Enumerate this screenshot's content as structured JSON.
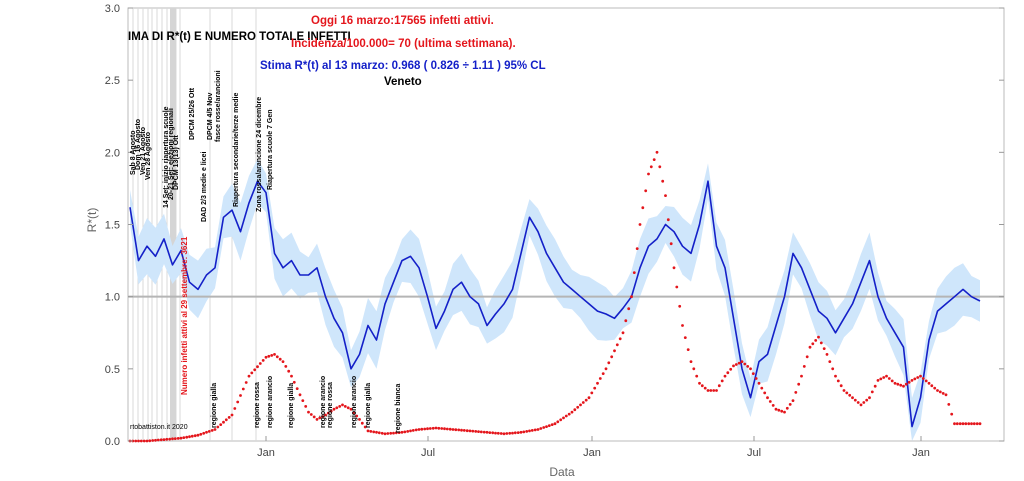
{
  "chart_data": {
    "type": "line",
    "title_partial": "IMA DI R*(t) E NUMERO TOTALE INFETTI",
    "annotations": {
      "oggi": "Oggi 16 marzo:17565 infetti attivi.",
      "incidenza": "Incidenza/100.000= 70 (ultima settimana).",
      "stima": "Stima R*(t) al 13 marzo: 0.968 ( 0.826 ÷ 1.11 ) 95% CL",
      "region": "Veneto",
      "side_label": "Numero infetti attivi al 29 settembre: 3621",
      "credit": "rtobattiston.it 2020"
    },
    "xlabel": "Data",
    "ylabel": "R*(t)",
    "ylim": [
      0,
      3
    ],
    "y_ticks": [
      "0.0",
      "0.5",
      "1.0",
      "1.5",
      "2.0",
      "2.5",
      "3.0"
    ],
    "reference_line": 1.0,
    "x_ticks": [
      "Jan",
      "Jul",
      "Jan",
      "Jul",
      "Jan"
    ],
    "event_labels_top": [
      "Sab 8 Agosto",
      "Dom 16 Agosto",
      "Ven 21 Agosto",
      "Ven 28 Agosto",
      "14 Set: inizio riapertura scuole",
      "20-21 Set: elezioni regionali",
      "DPCM 13(13) Ott",
      "DPCM 25/26 Ott",
      "DAD 2/3 medie e licei",
      "DPCM 4/5 Nov",
      "fasce rosse/arancioni",
      "Riapertura secondarie/terze medie",
      "Zona rossa/arancione 24 dicembre",
      "Riapertura scuole 7 Gen"
    ],
    "event_labels_bottom": [
      "regione gialla",
      "regione rossa",
      "regione arancio",
      "regione gialla",
      "regione arancio",
      "regione rossa",
      "regione arancio",
      "regione gialla",
      "regione bianca"
    ],
    "series": [
      {
        "name": "R*(t)",
        "color": "#1420c8",
        "band_color": "#cfe6fb",
        "points": [
          [
            0,
            1.62
          ],
          [
            0.01,
            1.25
          ],
          [
            0.02,
            1.35
          ],
          [
            0.03,
            1.28
          ],
          [
            0.04,
            1.4
          ],
          [
            0.05,
            1.22
          ],
          [
            0.06,
            1.32
          ],
          [
            0.07,
            1.1
          ],
          [
            0.08,
            1.05
          ],
          [
            0.09,
            1.15
          ],
          [
            0.1,
            1.2
          ],
          [
            0.11,
            1.55
          ],
          [
            0.12,
            1.6
          ],
          [
            0.13,
            1.45
          ],
          [
            0.14,
            1.65
          ],
          [
            0.15,
            1.8
          ],
          [
            0.16,
            1.72
          ],
          [
            0.17,
            1.3
          ],
          [
            0.18,
            1.2
          ],
          [
            0.19,
            1.25
          ],
          [
            0.2,
            1.15
          ],
          [
            0.21,
            1.15
          ],
          [
            0.22,
            1.2
          ],
          [
            0.23,
            1.0
          ],
          [
            0.24,
            0.85
          ],
          [
            0.25,
            0.75
          ],
          [
            0.26,
            0.5
          ],
          [
            0.27,
            0.6
          ],
          [
            0.28,
            0.8
          ],
          [
            0.29,
            0.7
          ],
          [
            0.3,
            0.95
          ],
          [
            0.31,
            1.1
          ],
          [
            0.32,
            1.25
          ],
          [
            0.33,
            1.28
          ],
          [
            0.34,
            1.2
          ],
          [
            0.35,
            1.0
          ],
          [
            0.36,
            0.78
          ],
          [
            0.37,
            0.9
          ],
          [
            0.38,
            1.05
          ],
          [
            0.39,
            1.1
          ],
          [
            0.4,
            1.0
          ],
          [
            0.41,
            0.95
          ],
          [
            0.42,
            0.8
          ],
          [
            0.43,
            0.88
          ],
          [
            0.44,
            0.95
          ],
          [
            0.45,
            1.05
          ],
          [
            0.46,
            1.3
          ],
          [
            0.47,
            1.55
          ],
          [
            0.48,
            1.45
          ],
          [
            0.49,
            1.3
          ],
          [
            0.5,
            1.2
          ],
          [
            0.51,
            1.1
          ],
          [
            0.52,
            1.05
          ],
          [
            0.53,
            1.0
          ],
          [
            0.54,
            0.95
          ],
          [
            0.55,
            0.9
          ],
          [
            0.56,
            0.88
          ],
          [
            0.57,
            0.85
          ],
          [
            0.58,
            0.92
          ],
          [
            0.59,
            1.0
          ],
          [
            0.6,
            1.2
          ],
          [
            0.61,
            1.35
          ],
          [
            0.62,
            1.4
          ],
          [
            0.63,
            1.5
          ],
          [
            0.64,
            1.45
          ],
          [
            0.65,
            1.35
          ],
          [
            0.66,
            1.3
          ],
          [
            0.67,
            1.5
          ],
          [
            0.68,
            1.8
          ],
          [
            0.69,
            1.35
          ],
          [
            0.7,
            1.2
          ],
          [
            0.71,
            0.85
          ],
          [
            0.72,
            0.5
          ],
          [
            0.73,
            0.3
          ],
          [
            0.74,
            0.55
          ],
          [
            0.75,
            0.6
          ],
          [
            0.76,
            0.8
          ],
          [
            0.77,
            1.0
          ],
          [
            0.78,
            1.3
          ],
          [
            0.79,
            1.2
          ],
          [
            0.8,
            1.05
          ],
          [
            0.81,
            0.9
          ],
          [
            0.82,
            0.85
          ],
          [
            0.83,
            0.75
          ],
          [
            0.84,
            0.85
          ],
          [
            0.85,
            0.95
          ],
          [
            0.86,
            1.1
          ],
          [
            0.87,
            1.25
          ],
          [
            0.88,
            1.0
          ],
          [
            0.89,
            0.85
          ],
          [
            0.9,
            0.75
          ],
          [
            0.91,
            0.65
          ],
          [
            0.92,
            0.1
          ],
          [
            0.93,
            0.3
          ],
          [
            0.94,
            0.7
          ],
          [
            0.95,
            0.9
          ],
          [
            0.96,
            0.95
          ],
          [
            0.97,
            1.0
          ],
          [
            0.98,
            1.05
          ],
          [
            0.99,
            1.0
          ],
          [
            1.0,
            0.97
          ]
        ]
      },
      {
        "name": "Numero infetti attivi",
        "color": "#e4161c",
        "points": [
          [
            0,
            0.0
          ],
          [
            0.02,
            0.0
          ],
          [
            0.04,
            0.01
          ],
          [
            0.06,
            0.02
          ],
          [
            0.08,
            0.04
          ],
          [
            0.1,
            0.08
          ],
          [
            0.12,
            0.18
          ],
          [
            0.14,
            0.45
          ],
          [
            0.16,
            0.58
          ],
          [
            0.17,
            0.6
          ],
          [
            0.18,
            0.55
          ],
          [
            0.19,
            0.45
          ],
          [
            0.2,
            0.32
          ],
          [
            0.21,
            0.2
          ],
          [
            0.22,
            0.15
          ],
          [
            0.23,
            0.18
          ],
          [
            0.24,
            0.22
          ],
          [
            0.25,
            0.25
          ],
          [
            0.26,
            0.22
          ],
          [
            0.27,
            0.15
          ],
          [
            0.28,
            0.07
          ],
          [
            0.3,
            0.05
          ],
          [
            0.32,
            0.06
          ],
          [
            0.34,
            0.08
          ],
          [
            0.36,
            0.09
          ],
          [
            0.38,
            0.08
          ],
          [
            0.4,
            0.07
          ],
          [
            0.42,
            0.06
          ],
          [
            0.44,
            0.05
          ],
          [
            0.46,
            0.06
          ],
          [
            0.48,
            0.08
          ],
          [
            0.5,
            0.12
          ],
          [
            0.52,
            0.2
          ],
          [
            0.54,
            0.3
          ],
          [
            0.56,
            0.5
          ],
          [
            0.58,
            0.75
          ],
          [
            0.59,
            1.0
          ],
          [
            0.6,
            1.5
          ],
          [
            0.61,
            1.85
          ],
          [
            0.62,
            2.0
          ],
          [
            0.63,
            1.7
          ],
          [
            0.64,
            1.2
          ],
          [
            0.65,
            0.8
          ],
          [
            0.66,
            0.55
          ],
          [
            0.67,
            0.4
          ],
          [
            0.68,
            0.35
          ],
          [
            0.69,
            0.35
          ],
          [
            0.7,
            0.45
          ],
          [
            0.71,
            0.52
          ],
          [
            0.72,
            0.55
          ],
          [
            0.73,
            0.5
          ],
          [
            0.74,
            0.4
          ],
          [
            0.75,
            0.3
          ],
          [
            0.76,
            0.22
          ],
          [
            0.77,
            0.2
          ],
          [
            0.78,
            0.28
          ],
          [
            0.79,
            0.45
          ],
          [
            0.8,
            0.65
          ],
          [
            0.81,
            0.72
          ],
          [
            0.82,
            0.6
          ],
          [
            0.83,
            0.45
          ],
          [
            0.84,
            0.35
          ],
          [
            0.85,
            0.3
          ],
          [
            0.86,
            0.25
          ],
          [
            0.87,
            0.3
          ],
          [
            0.88,
            0.42
          ],
          [
            0.89,
            0.45
          ],
          [
            0.9,
            0.4
          ],
          [
            0.91,
            0.38
          ],
          [
            0.92,
            0.42
          ],
          [
            0.93,
            0.45
          ],
          [
            0.94,
            0.4
          ],
          [
            0.95,
            0.35
          ],
          [
            0.96,
            0.32
          ],
          [
            0.97,
            0.12
          ],
          [
            0.98,
            0.12
          ],
          [
            0.99,
            0.12
          ],
          [
            1.0,
            0.12
          ]
        ]
      }
    ],
    "grid": false,
    "legend": "none"
  }
}
